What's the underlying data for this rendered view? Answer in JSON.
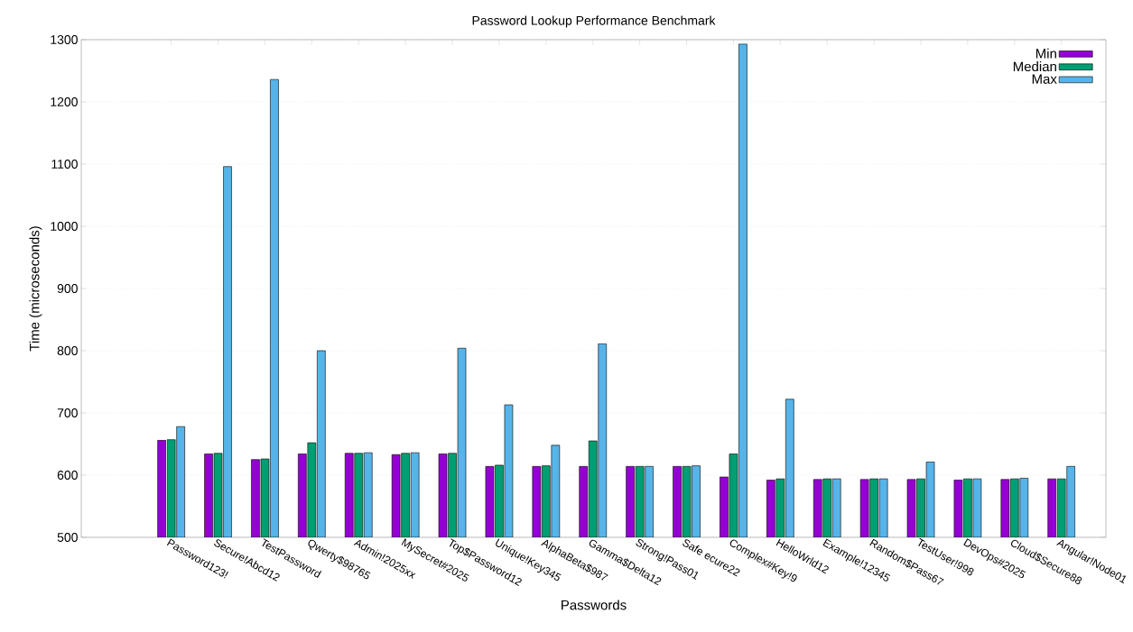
{
  "chart_data": {
    "type": "bar",
    "title": "Password Lookup Performance Benchmark",
    "xlabel": "Passwords",
    "ylabel": "Time (microseconds)",
    "categories": [
      "Password123!",
      "Secure!Abcd12",
      "TestPassword",
      "Qwerty$98765",
      "Admin!2025xx",
      "MySecret#2025",
      "Top$Password12",
      "Unique!Key345",
      "AlphaBeta$987",
      "Gamma$Delta12",
      "Strong!Pass01",
      "Safe ecure22",
      "Complex#Key!9",
      "HelloWrld12",
      "Example!12345",
      "Random$Pass67",
      "TestUser!998",
      "DevOps#2025",
      "Cloud$Secure88",
      "Angular!Node01"
    ],
    "series": [
      {
        "name": "Min",
        "color": "#9400d3",
        "values": [
          656,
          634,
          625,
          634,
          635,
          633,
          634,
          614,
          614,
          614,
          614,
          614,
          597,
          592,
          593,
          593,
          593,
          592,
          593,
          594
        ]
      },
      {
        "name": "Median",
        "color": "#009e73",
        "values": [
          657,
          635,
          626,
          652,
          635,
          635,
          635,
          616,
          615,
          655,
          614,
          614,
          634,
          594,
          594,
          594,
          594,
          594,
          594,
          594
        ]
      },
      {
        "name": "Max",
        "color": "#56b4e9",
        "values": [
          678,
          1096,
          1236,
          800,
          636,
          636,
          804,
          713,
          648,
          811,
          614,
          615,
          1293,
          722,
          594,
          594,
          621,
          594,
          595,
          614
        ]
      }
    ],
    "ylim": [
      500,
      1300
    ],
    "yticks": [
      500,
      600,
      700,
      800,
      900,
      1000,
      1100,
      1200,
      1300
    ],
    "grid": "y",
    "legend": "top right"
  }
}
